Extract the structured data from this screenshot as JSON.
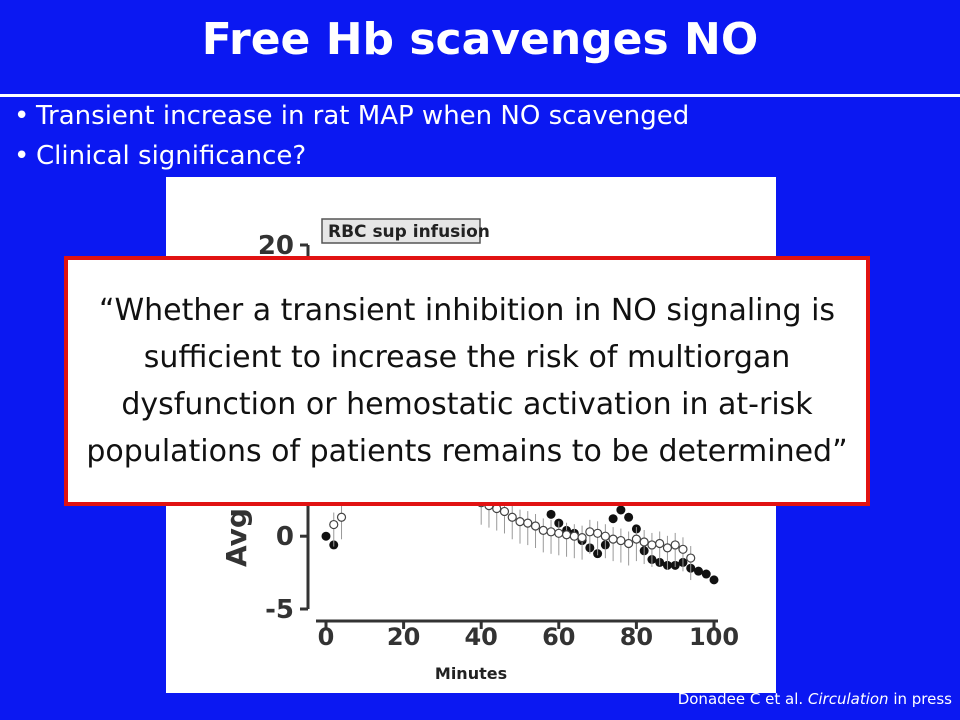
{
  "slide": {
    "title": "Free Hb scavenges NO",
    "bullets": [
      "Transient increase in rat MAP when NO scavenged",
      "Clinical significance?"
    ],
    "quote": "“Whether a transient inhibition in NO signaling is sufficient to increase the risk of multiorgan dysfunction or hemostatic activation in at-risk populations of patients remains to be determined”",
    "citation_author": "Donadee C et al. ",
    "citation_journal": "Circulation",
    "citation_tail": " in press",
    "colors": {
      "background": "#0b18f2",
      "quote_border": "#e11212",
      "text": "#ffffff"
    }
  },
  "chart_data": {
    "type": "scatter",
    "xlabel": "Minutes",
    "ylabel_fragment": "Avg",
    "annotation": "RBC sup infusion",
    "xticks": [
      "0",
      "20",
      "40",
      "60",
      "80",
      "100"
    ],
    "yticks": [
      "20",
      "0",
      "-5"
    ],
    "xlim": [
      0,
      100
    ],
    "ylim": [
      -5,
      20
    ],
    "series": [
      {
        "marker": "filled",
        "x": [
          0,
          2,
          58,
          60,
          62,
          64,
          66,
          68,
          70,
          72,
          74,
          76,
          78,
          80,
          82,
          84,
          86,
          88,
          90,
          92,
          94,
          96,
          98,
          100
        ],
        "y": [
          0,
          -0.6,
          1.5,
          0.9,
          0.4,
          0.2,
          -0.3,
          -0.8,
          -1.2,
          -0.6,
          1.2,
          1.8,
          1.3,
          0.5,
          -1.0,
          -1.6,
          -1.8,
          -2.0,
          -2.0,
          -1.8,
          -2.2,
          -2.4,
          -2.6,
          -3.0
        ]
      },
      {
        "marker": "open",
        "x": [
          2,
          4,
          40,
          42,
          44,
          46,
          48,
          50,
          52,
          54,
          56,
          58,
          60,
          62,
          64,
          66,
          68,
          70,
          72,
          74,
          76,
          78,
          80,
          82,
          84,
          86,
          88,
          90,
          92,
          94
        ],
        "y": [
          0.8,
          1.3,
          2.3,
          2.1,
          1.9,
          1.7,
          1.3,
          1.0,
          0.9,
          0.7,
          0.4,
          0.3,
          0.2,
          0.1,
          0.0,
          -0.1,
          0.3,
          0.2,
          0.0,
          -0.2,
          -0.3,
          -0.5,
          -0.2,
          -0.4,
          -0.6,
          -0.5,
          -0.8,
          -0.6,
          -0.9,
          -1.5
        ]
      }
    ]
  }
}
